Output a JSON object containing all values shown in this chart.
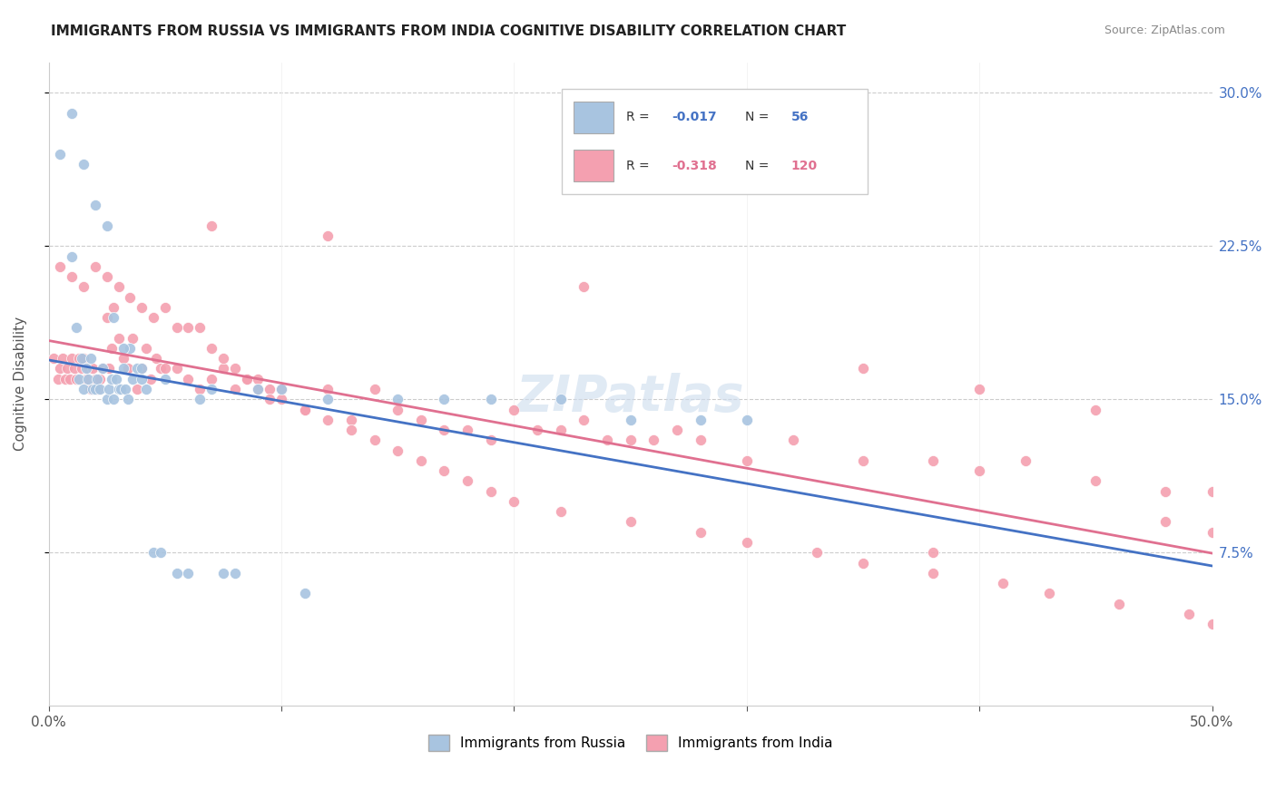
{
  "title": "IMMIGRANTS FROM RUSSIA VS IMMIGRANTS FROM INDIA COGNITIVE DISABILITY CORRELATION CHART",
  "source": "Source: ZipAtlas.com",
  "ylabel": "Cognitive Disability",
  "ytick_vals": [
    0.075,
    0.15,
    0.225,
    0.3
  ],
  "ytick_labels": [
    "7.5%",
    "15.0%",
    "22.5%",
    "30.0%"
  ],
  "xlim": [
    0.0,
    0.5
  ],
  "ylim": [
    0.0,
    0.315
  ],
  "russia_color": "#a8c4e0",
  "india_color": "#f4a0b0",
  "russia_line_color": "#4472c4",
  "india_line_color": "#e07090",
  "russia_scatter_x": [
    0.005,
    0.01,
    0.012,
    0.013,
    0.014,
    0.015,
    0.016,
    0.017,
    0.018,
    0.019,
    0.02,
    0.021,
    0.022,
    0.023,
    0.025,
    0.026,
    0.027,
    0.028,
    0.029,
    0.03,
    0.031,
    0.032,
    0.033,
    0.034,
    0.035,
    0.036,
    0.038,
    0.04,
    0.042,
    0.045,
    0.048,
    0.05,
    0.055,
    0.06,
    0.065,
    0.07,
    0.075,
    0.08,
    0.09,
    0.1,
    0.11,
    0.12,
    0.15,
    0.17,
    0.19,
    0.22,
    0.25,
    0.28,
    0.3,
    0.01,
    0.015,
    0.02,
    0.025,
    0.028,
    0.032,
    0.04
  ],
  "russia_scatter_y": [
    0.27,
    0.22,
    0.185,
    0.16,
    0.17,
    0.155,
    0.165,
    0.16,
    0.17,
    0.155,
    0.155,
    0.16,
    0.155,
    0.165,
    0.15,
    0.155,
    0.16,
    0.15,
    0.16,
    0.155,
    0.155,
    0.165,
    0.155,
    0.15,
    0.175,
    0.16,
    0.165,
    0.165,
    0.155,
    0.075,
    0.075,
    0.16,
    0.065,
    0.065,
    0.15,
    0.155,
    0.065,
    0.065,
    0.155,
    0.155,
    0.055,
    0.15,
    0.15,
    0.15,
    0.15,
    0.15,
    0.14,
    0.14,
    0.14,
    0.29,
    0.265,
    0.245,
    0.235,
    0.19,
    0.175,
    0.16
  ],
  "india_scatter_x": [
    0.002,
    0.004,
    0.005,
    0.006,
    0.007,
    0.008,
    0.009,
    0.01,
    0.011,
    0.012,
    0.013,
    0.014,
    0.015,
    0.016,
    0.017,
    0.018,
    0.019,
    0.02,
    0.021,
    0.022,
    0.023,
    0.025,
    0.026,
    0.027,
    0.028,
    0.03,
    0.032,
    0.034,
    0.036,
    0.038,
    0.04,
    0.042,
    0.044,
    0.046,
    0.048,
    0.05,
    0.055,
    0.06,
    0.065,
    0.07,
    0.075,
    0.08,
    0.085,
    0.09,
    0.095,
    0.1,
    0.11,
    0.12,
    0.13,
    0.14,
    0.15,
    0.16,
    0.17,
    0.18,
    0.19,
    0.2,
    0.21,
    0.22,
    0.23,
    0.24,
    0.25,
    0.26,
    0.27,
    0.28,
    0.3,
    0.32,
    0.35,
    0.38,
    0.4,
    0.42,
    0.45,
    0.48,
    0.5,
    0.005,
    0.01,
    0.015,
    0.02,
    0.025,
    0.03,
    0.035,
    0.04,
    0.045,
    0.05,
    0.055,
    0.06,
    0.065,
    0.07,
    0.075,
    0.08,
    0.085,
    0.09,
    0.095,
    0.1,
    0.11,
    0.12,
    0.13,
    0.14,
    0.15,
    0.16,
    0.17,
    0.18,
    0.19,
    0.2,
    0.22,
    0.25,
    0.28,
    0.3,
    0.33,
    0.35,
    0.38,
    0.41,
    0.43,
    0.46,
    0.49,
    0.5,
    0.07,
    0.12,
    0.23,
    0.35,
    0.4,
    0.45,
    0.48,
    0.5,
    0.38
  ],
  "india_scatter_y": [
    0.17,
    0.16,
    0.165,
    0.17,
    0.16,
    0.165,
    0.16,
    0.17,
    0.165,
    0.16,
    0.17,
    0.165,
    0.17,
    0.16,
    0.165,
    0.155,
    0.165,
    0.16,
    0.155,
    0.16,
    0.165,
    0.19,
    0.165,
    0.175,
    0.195,
    0.18,
    0.17,
    0.165,
    0.18,
    0.155,
    0.165,
    0.175,
    0.16,
    0.17,
    0.165,
    0.165,
    0.165,
    0.16,
    0.155,
    0.16,
    0.165,
    0.155,
    0.16,
    0.16,
    0.155,
    0.155,
    0.145,
    0.155,
    0.14,
    0.155,
    0.145,
    0.14,
    0.135,
    0.135,
    0.13,
    0.145,
    0.135,
    0.135,
    0.14,
    0.13,
    0.13,
    0.13,
    0.135,
    0.13,
    0.12,
    0.13,
    0.12,
    0.12,
    0.115,
    0.12,
    0.11,
    0.105,
    0.105,
    0.215,
    0.21,
    0.205,
    0.215,
    0.21,
    0.205,
    0.2,
    0.195,
    0.19,
    0.195,
    0.185,
    0.185,
    0.185,
    0.175,
    0.17,
    0.165,
    0.16,
    0.155,
    0.15,
    0.15,
    0.145,
    0.14,
    0.135,
    0.13,
    0.125,
    0.12,
    0.115,
    0.11,
    0.105,
    0.1,
    0.095,
    0.09,
    0.085,
    0.08,
    0.075,
    0.07,
    0.065,
    0.06,
    0.055,
    0.05,
    0.045,
    0.04,
    0.235,
    0.23,
    0.205,
    0.165,
    0.155,
    0.145,
    0.09,
    0.085,
    0.075
  ]
}
